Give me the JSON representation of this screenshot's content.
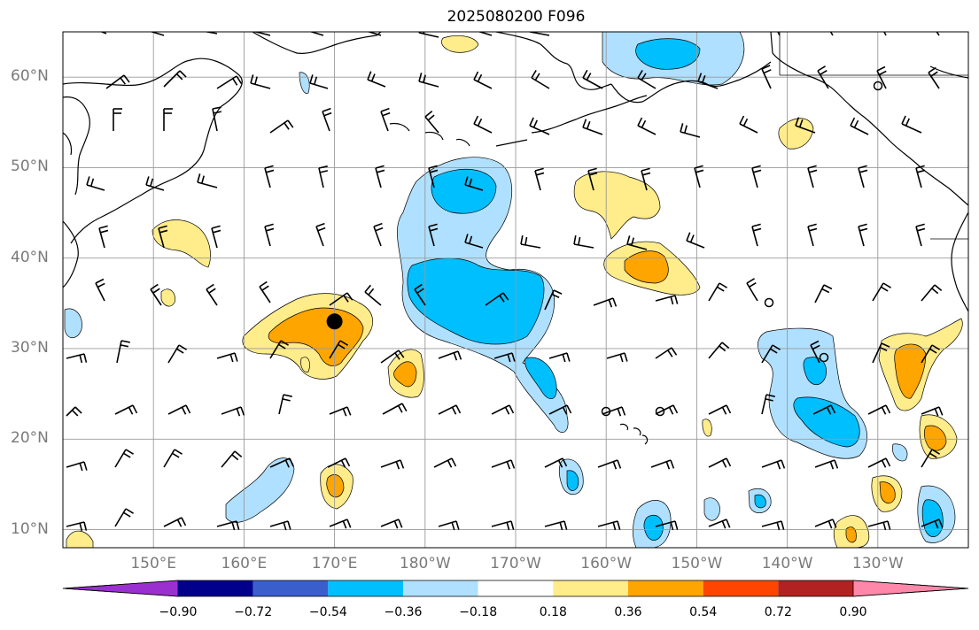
{
  "title": "2025080200 F096",
  "map": {
    "lon_range": [
      140,
      240
    ],
    "lat_range": [
      8,
      65
    ],
    "lat_labels": [
      "10°N",
      "20°N",
      "30°N",
      "40°N",
      "50°N",
      "60°N"
    ],
    "lon_labels": [
      "150°E",
      "160°E",
      "170°E",
      "180°W",
      "170°W",
      "160°W",
      "150°W",
      "140°W",
      "130°W"
    ],
    "gridlines": true,
    "marker": {
      "lon": 170.0,
      "lat": 33.0,
      "symbol": "filled-circle"
    }
  },
  "colorbar": {
    "boundaries": [
      -0.9,
      -0.72,
      -0.54,
      -0.36,
      -0.18,
      0.18,
      0.36,
      0.54,
      0.72,
      0.9
    ],
    "tick_labels": [
      "−0.90",
      "−0.72",
      "−0.54",
      "−0.36",
      "−0.18",
      "0.18",
      "0.36",
      "0.54",
      "0.72",
      "0.90"
    ],
    "colors": [
      "#9b30d0",
      "#00008b",
      "#3a5fcd",
      "#00bfff",
      "#b0e0ff",
      "#ffffff",
      "#ffec8b",
      "#ffa500",
      "#ff4500",
      "#b22222",
      "#ff88aa"
    ],
    "extend": "both"
  }
}
